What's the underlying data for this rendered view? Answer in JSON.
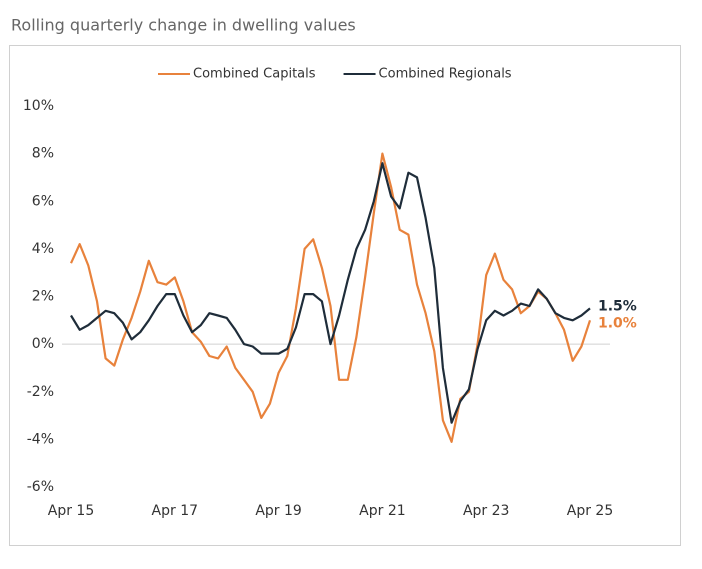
{
  "chart_data": {
    "type": "line",
    "title": "Rolling quarterly change in dwelling values",
    "categories": [
      "Apr 15",
      null,
      null,
      null,
      null,
      null,
      null,
      null,
      null,
      null,
      null,
      null,
      "Apr 17",
      null,
      null,
      null,
      null,
      null,
      null,
      null,
      null,
      null,
      null,
      null,
      "Apr 19",
      null,
      null,
      null,
      null,
      null,
      null,
      null,
      null,
      null,
      null,
      null,
      "Apr 21",
      null,
      null,
      null,
      null,
      null,
      null,
      null,
      null,
      null,
      null,
      null,
      "Apr 23",
      null,
      null,
      null,
      null,
      null,
      null,
      null,
      null,
      null,
      null,
      null,
      "Apr 25"
    ],
    "series": [
      {
        "name": "Combined Capitals",
        "color": "#e8823c",
        "values": [
          3.4,
          4.2,
          3.3,
          1.8,
          -0.6,
          -0.9,
          0.2,
          1.1,
          2.2,
          3.5,
          2.6,
          2.5,
          2.8,
          1.8,
          0.5,
          0.1,
          -0.5,
          -0.6,
          -0.1,
          -1.0,
          -1.5,
          -2.0,
          -3.1,
          -2.5,
          -1.2,
          -0.5,
          1.5,
          4.0,
          4.4,
          3.2,
          1.6,
          -1.5,
          -1.5,
          0.3,
          2.8,
          5.5,
          8.0,
          6.6,
          4.8,
          4.6,
          2.5,
          1.3,
          -0.3,
          -3.2,
          -4.1,
          -2.3,
          -2.0,
          0.0,
          2.9,
          3.8,
          2.7,
          2.3,
          1.3,
          1.6,
          2.2,
          1.9,
          1.3,
          0.6,
          -0.7,
          -0.1,
          1.0
        ],
        "value_labels": [
          null,
          null,
          null,
          null,
          null,
          null,
          null,
          null,
          null,
          null,
          null,
          null,
          null,
          null,
          null,
          null,
          null,
          null,
          null,
          null,
          null,
          null,
          null,
          null,
          null,
          null,
          null,
          null,
          null,
          null,
          null,
          null,
          null,
          null,
          null,
          null,
          null,
          null,
          null,
          null,
          null,
          null,
          null,
          null,
          null,
          null,
          null,
          null,
          null,
          null,
          null,
          null,
          null,
          null,
          null,
          null,
          null,
          null,
          null,
          null,
          "1.0%"
        ]
      },
      {
        "name": "Combined Regionals",
        "color": "#1f2d3a",
        "values": [
          1.2,
          0.6,
          0.8,
          1.1,
          1.4,
          1.3,
          0.9,
          0.2,
          0.5,
          1.0,
          1.6,
          2.1,
          2.1,
          1.2,
          0.5,
          0.8,
          1.3,
          1.2,
          1.1,
          0.6,
          0.0,
          -0.1,
          -0.4,
          -0.4,
          -0.4,
          -0.2,
          0.7,
          2.1,
          2.1,
          1.8,
          0.0,
          1.2,
          2.7,
          4.0,
          4.8,
          6.0,
          7.6,
          6.2,
          5.7,
          7.2,
          7.0,
          5.3,
          3.2,
          -1.0,
          -3.3,
          -2.4,
          -1.9,
          -0.2,
          1.0,
          1.4,
          1.2,
          1.4,
          1.7,
          1.6,
          2.3,
          1.9,
          1.3,
          1.1,
          1.0,
          1.2,
          1.5
        ],
        "value_labels": [
          null,
          null,
          null,
          null,
          null,
          null,
          null,
          null,
          null,
          null,
          null,
          null,
          null,
          null,
          null,
          null,
          null,
          null,
          null,
          null,
          null,
          null,
          null,
          null,
          null,
          null,
          null,
          null,
          null,
          null,
          null,
          null,
          null,
          null,
          null,
          null,
          null,
          null,
          null,
          null,
          null,
          null,
          null,
          null,
          null,
          null,
          null,
          null,
          null,
          null,
          null,
          null,
          null,
          null,
          null,
          null,
          null,
          null,
          null,
          null,
          "1.5%"
        ]
      }
    ],
    "ylim": [
      -6,
      10
    ],
    "yticks": [
      {
        "value": -6,
        "label": "-6%"
      },
      {
        "value": -4,
        "label": "-4%"
      },
      {
        "value": -2,
        "label": "-2%"
      },
      {
        "value": 0,
        "label": "0%"
      },
      {
        "value": 2,
        "label": "2%"
      },
      {
        "value": 4,
        "label": "4%"
      },
      {
        "value": 6,
        "label": "6%"
      },
      {
        "value": 8,
        "label": "8%"
      },
      {
        "value": 10,
        "label": "10%"
      }
    ],
    "zero_line": true,
    "legend": "top"
  }
}
